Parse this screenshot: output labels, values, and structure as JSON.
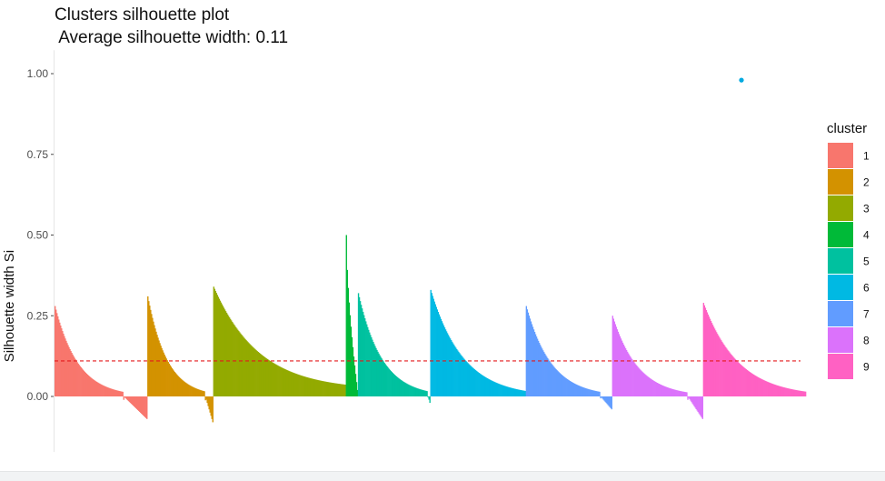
{
  "chart_data": {
    "type": "bar",
    "title": "Clusters silhouette plot",
    "subtitle": " Average silhouette width: 0.11",
    "xlabel": "",
    "ylabel": "Silhouette width Si",
    "ylim": [
      -0.13,
      1.05
    ],
    "yticks": [
      "0.00",
      "0.25",
      "0.50",
      "0.75",
      "1.00"
    ],
    "grid": false,
    "legend": {
      "title": "cluster",
      "position": "right"
    },
    "average_line": 0.11,
    "clusters": [
      {
        "name": "1",
        "color": "#F8766D",
        "count": 100,
        "max": 0.28,
        "min": -0.07,
        "zero_frac": 0.74
      },
      {
        "name": "2",
        "color": "#D39200",
        "count": 71,
        "max": 0.31,
        "min": -0.08,
        "zero_frac": 0.87
      },
      {
        "name": "3",
        "color": "#93AA00",
        "count": 143,
        "max": 0.34,
        "min": 0.02,
        "zero_frac": 1.0
      },
      {
        "name": "4",
        "color": "#00BA38",
        "count": 13,
        "max": 0.5,
        "min": 0.02,
        "zero_frac": 1.0
      },
      {
        "name": "5",
        "color": "#00C19F",
        "count": 78,
        "max": 0.32,
        "min": -0.02,
        "zero_frac": 0.96
      },
      {
        "name": "6",
        "color": "#00B9E3",
        "count": 103,
        "max": 0.33,
        "min": 0.0,
        "zero_frac": 1.0
      },
      {
        "name": "7",
        "color": "#619CFF",
        "count": 93,
        "max": 0.28,
        "min": -0.04,
        "zero_frac": 0.86
      },
      {
        "name": "8",
        "color": "#DB72FB",
        "count": 98,
        "max": 0.25,
        "min": -0.07,
        "zero_frac": 0.83
      },
      {
        "name": "9",
        "color": "#FF61C3",
        "count": 111,
        "max": 0.29,
        "min": 0.0,
        "zero_frac": 1.0
      }
    ],
    "outlier_point": {
      "cluster": "6",
      "y": 0.98,
      "color": "#00A9E0"
    }
  }
}
